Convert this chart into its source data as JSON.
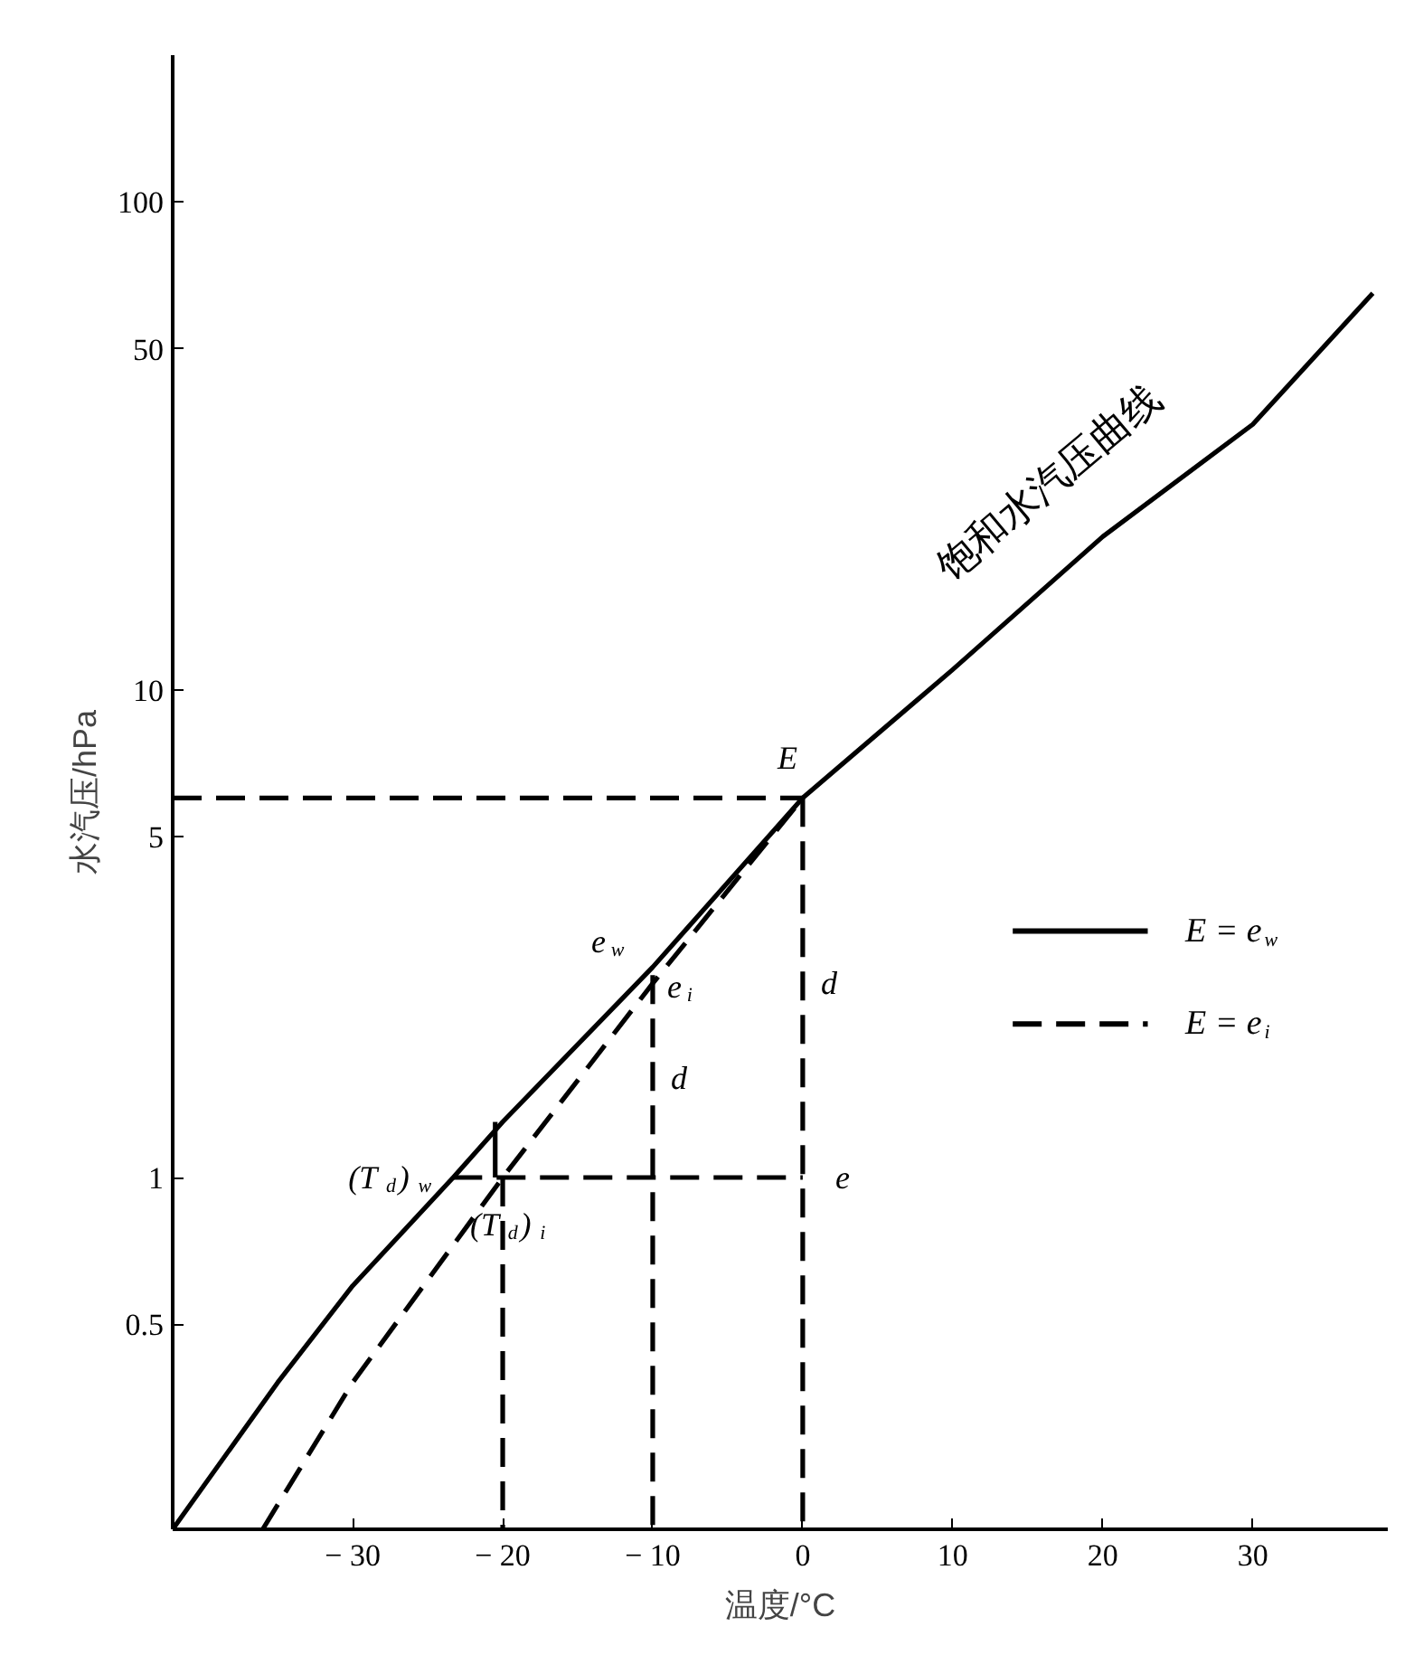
{
  "chart_data": {
    "type": "line",
    "xlabel": "温度/°C",
    "ylabel": "水汽压/hPa",
    "xlim": [
      -42,
      39
    ],
    "ylim": [
      0.19,
      200
    ],
    "log": "y",
    "xticks": [
      -30,
      -20,
      -10,
      0,
      10,
      20,
      30
    ],
    "yticks": [
      0.5,
      1,
      5,
      10,
      50,
      100
    ],
    "grid": false,
    "legend": "right",
    "marker": "none",
    "series": [
      {
        "name": "E = e$_{w}$",
        "color": "#000000",
        "line_style": "solid",
        "x": [
          -42,
          -35,
          -30,
          -23.3,
          -20,
          -10,
          0,
          10,
          20,
          30,
          38
        ],
        "values": [
          0.19,
          0.38,
          0.6,
          1,
          1.3,
          2.7,
          6,
          11,
          20.6,
          35,
          65
        ]
      },
      {
        "name": "E = e$_{i}$",
        "color": "#000000",
        "line_style": "dashed",
        "x": [
          -36,
          -30,
          -20,
          -10,
          0
        ],
        "values": [
          0.19,
          0.38,
          1,
          2.5,
          6
        ]
      },
      {
        "color": "#000000",
        "line_style": "dashed",
        "x": [
          -42,
          0
        ],
        "values": [
          6,
          6
        ]
      },
      {
        "color": "#000000",
        "line_style": "dashed",
        "x": [
          0,
          0
        ],
        "values": [
          6,
          0.19
        ]
      },
      {
        "color": "#000000",
        "line_style": "dashed",
        "x": [
          -23.3,
          0
        ],
        "values": [
          1,
          1
        ]
      },
      {
        "color": "#000000",
        "line_style": "dashed",
        "x": [
          -20,
          -20
        ],
        "values": [
          1,
          0.19
        ]
      },
      {
        "color": "#000000",
        "line_style": "dashed",
        "x": [
          -10,
          -10
        ],
        "values": [
          2.6,
          0.19
        ]
      },
      {
        "color": "#000000",
        "line_style": "solid",
        "x": [
          -20.5,
          -20.5
        ],
        "values": [
          1,
          1.3
        ]
      }
    ],
    "annotations": [
      {
        "text": "饱和水汽压曲线",
        "x": 20,
        "y": 20.6
      },
      {
        "text": "E",
        "x": 0,
        "y": 6
      },
      {
        "text": "e$_{w}$",
        "x": -10,
        "y": 2.7
      },
      {
        "text": "e$_{i}$",
        "x": -10,
        "y": 2.5
      },
      {
        "text": "d",
        "x": 0,
        "y": 2.5
      },
      {
        "text": "d",
        "x": -10,
        "y": 1.6
      },
      {
        "text": "(T$_{d}$)$_{w}$",
        "x": -23.3,
        "y": 1
      },
      {
        "text": "(T$_{d}$)$_{i}$",
        "x": -20,
        "y": 1
      },
      {
        "text": "e",
        "x": 0,
        "y": 1
      }
    ]
  }
}
